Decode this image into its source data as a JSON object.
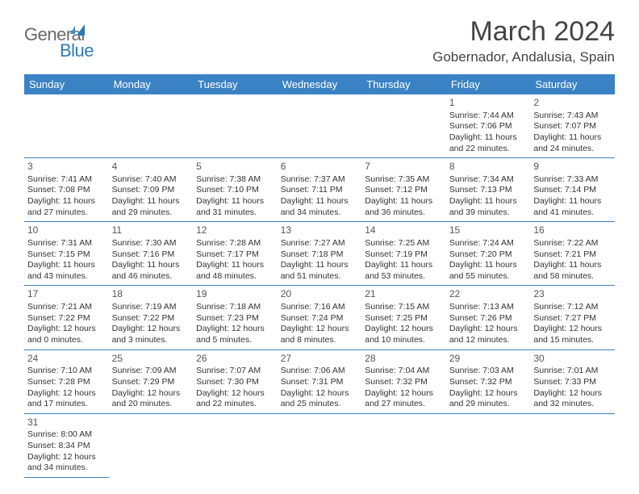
{
  "logo": {
    "textGray": "General",
    "textBlue": "Blue"
  },
  "title": "March 2024",
  "location": "Gobernador, Andalusia, Spain",
  "dayHeaders": [
    "Sunday",
    "Monday",
    "Tuesday",
    "Wednesday",
    "Thursday",
    "Friday",
    "Saturday"
  ],
  "colors": {
    "headerBg": "#3a82c4",
    "headerText": "#ffffff",
    "borderColor": "#3a82c4",
    "textColor": "#333333",
    "titleColor": "#444444"
  },
  "layout": {
    "pageWidth": 792,
    "pageHeight": 612,
    "cellFontSize": 10.5,
    "headerFontSize": 13,
    "titleFontSize": 34
  },
  "weeks": [
    [
      null,
      null,
      null,
      null,
      null,
      {
        "n": "1",
        "sr": "Sunrise: 7:44 AM",
        "ss": "Sunset: 7:06 PM",
        "d1": "Daylight: 11 hours",
        "d2": "and 22 minutes."
      },
      {
        "n": "2",
        "sr": "Sunrise: 7:43 AM",
        "ss": "Sunset: 7:07 PM",
        "d1": "Daylight: 11 hours",
        "d2": "and 24 minutes."
      }
    ],
    [
      {
        "n": "3",
        "sr": "Sunrise: 7:41 AM",
        "ss": "Sunset: 7:08 PM",
        "d1": "Daylight: 11 hours",
        "d2": "and 27 minutes."
      },
      {
        "n": "4",
        "sr": "Sunrise: 7:40 AM",
        "ss": "Sunset: 7:09 PM",
        "d1": "Daylight: 11 hours",
        "d2": "and 29 minutes."
      },
      {
        "n": "5",
        "sr": "Sunrise: 7:38 AM",
        "ss": "Sunset: 7:10 PM",
        "d1": "Daylight: 11 hours",
        "d2": "and 31 minutes."
      },
      {
        "n": "6",
        "sr": "Sunrise: 7:37 AM",
        "ss": "Sunset: 7:11 PM",
        "d1": "Daylight: 11 hours",
        "d2": "and 34 minutes."
      },
      {
        "n": "7",
        "sr": "Sunrise: 7:35 AM",
        "ss": "Sunset: 7:12 PM",
        "d1": "Daylight: 11 hours",
        "d2": "and 36 minutes."
      },
      {
        "n": "8",
        "sr": "Sunrise: 7:34 AM",
        "ss": "Sunset: 7:13 PM",
        "d1": "Daylight: 11 hours",
        "d2": "and 39 minutes."
      },
      {
        "n": "9",
        "sr": "Sunrise: 7:33 AM",
        "ss": "Sunset: 7:14 PM",
        "d1": "Daylight: 11 hours",
        "d2": "and 41 minutes."
      }
    ],
    [
      {
        "n": "10",
        "sr": "Sunrise: 7:31 AM",
        "ss": "Sunset: 7:15 PM",
        "d1": "Daylight: 11 hours",
        "d2": "and 43 minutes."
      },
      {
        "n": "11",
        "sr": "Sunrise: 7:30 AM",
        "ss": "Sunset: 7:16 PM",
        "d1": "Daylight: 11 hours",
        "d2": "and 46 minutes."
      },
      {
        "n": "12",
        "sr": "Sunrise: 7:28 AM",
        "ss": "Sunset: 7:17 PM",
        "d1": "Daylight: 11 hours",
        "d2": "and 48 minutes."
      },
      {
        "n": "13",
        "sr": "Sunrise: 7:27 AM",
        "ss": "Sunset: 7:18 PM",
        "d1": "Daylight: 11 hours",
        "d2": "and 51 minutes."
      },
      {
        "n": "14",
        "sr": "Sunrise: 7:25 AM",
        "ss": "Sunset: 7:19 PM",
        "d1": "Daylight: 11 hours",
        "d2": "and 53 minutes."
      },
      {
        "n": "15",
        "sr": "Sunrise: 7:24 AM",
        "ss": "Sunset: 7:20 PM",
        "d1": "Daylight: 11 hours",
        "d2": "and 55 minutes."
      },
      {
        "n": "16",
        "sr": "Sunrise: 7:22 AM",
        "ss": "Sunset: 7:21 PM",
        "d1": "Daylight: 11 hours",
        "d2": "and 58 minutes."
      }
    ],
    [
      {
        "n": "17",
        "sr": "Sunrise: 7:21 AM",
        "ss": "Sunset: 7:22 PM",
        "d1": "Daylight: 12 hours",
        "d2": "and 0 minutes."
      },
      {
        "n": "18",
        "sr": "Sunrise: 7:19 AM",
        "ss": "Sunset: 7:22 PM",
        "d1": "Daylight: 12 hours",
        "d2": "and 3 minutes."
      },
      {
        "n": "19",
        "sr": "Sunrise: 7:18 AM",
        "ss": "Sunset: 7:23 PM",
        "d1": "Daylight: 12 hours",
        "d2": "and 5 minutes."
      },
      {
        "n": "20",
        "sr": "Sunrise: 7:16 AM",
        "ss": "Sunset: 7:24 PM",
        "d1": "Daylight: 12 hours",
        "d2": "and 8 minutes."
      },
      {
        "n": "21",
        "sr": "Sunrise: 7:15 AM",
        "ss": "Sunset: 7:25 PM",
        "d1": "Daylight: 12 hours",
        "d2": "and 10 minutes."
      },
      {
        "n": "22",
        "sr": "Sunrise: 7:13 AM",
        "ss": "Sunset: 7:26 PM",
        "d1": "Daylight: 12 hours",
        "d2": "and 12 minutes."
      },
      {
        "n": "23",
        "sr": "Sunrise: 7:12 AM",
        "ss": "Sunset: 7:27 PM",
        "d1": "Daylight: 12 hours",
        "d2": "and 15 minutes."
      }
    ],
    [
      {
        "n": "24",
        "sr": "Sunrise: 7:10 AM",
        "ss": "Sunset: 7:28 PM",
        "d1": "Daylight: 12 hours",
        "d2": "and 17 minutes."
      },
      {
        "n": "25",
        "sr": "Sunrise: 7:09 AM",
        "ss": "Sunset: 7:29 PM",
        "d1": "Daylight: 12 hours",
        "d2": "and 20 minutes."
      },
      {
        "n": "26",
        "sr": "Sunrise: 7:07 AM",
        "ss": "Sunset: 7:30 PM",
        "d1": "Daylight: 12 hours",
        "d2": "and 22 minutes."
      },
      {
        "n": "27",
        "sr": "Sunrise: 7:06 AM",
        "ss": "Sunset: 7:31 PM",
        "d1": "Daylight: 12 hours",
        "d2": "and 25 minutes."
      },
      {
        "n": "28",
        "sr": "Sunrise: 7:04 AM",
        "ss": "Sunset: 7:32 PM",
        "d1": "Daylight: 12 hours",
        "d2": "and 27 minutes."
      },
      {
        "n": "29",
        "sr": "Sunrise: 7:03 AM",
        "ss": "Sunset: 7:32 PM",
        "d1": "Daylight: 12 hours",
        "d2": "and 29 minutes."
      },
      {
        "n": "30",
        "sr": "Sunrise: 7:01 AM",
        "ss": "Sunset: 7:33 PM",
        "d1": "Daylight: 12 hours",
        "d2": "and 32 minutes."
      }
    ],
    [
      {
        "n": "31",
        "sr": "Sunrise: 8:00 AM",
        "ss": "Sunset: 8:34 PM",
        "d1": "Daylight: 12 hours",
        "d2": "and 34 minutes."
      },
      null,
      null,
      null,
      null,
      null,
      null
    ]
  ]
}
